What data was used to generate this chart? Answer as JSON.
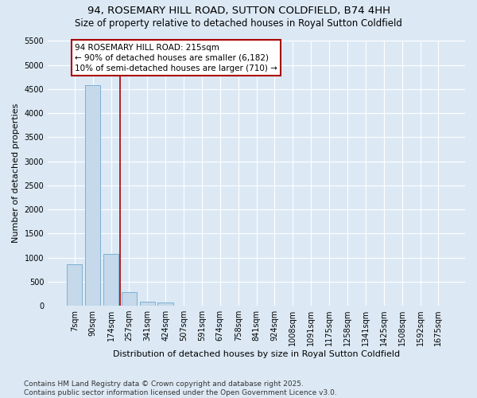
{
  "title": "94, ROSEMARY HILL ROAD, SUTTON COLDFIELD, B74 4HH",
  "subtitle": "Size of property relative to detached houses in Royal Sutton Coldfield",
  "xlabel": "Distribution of detached houses by size in Royal Sutton Coldfield",
  "ylabel": "Number of detached properties",
  "categories": [
    "7sqm",
    "90sqm",
    "174sqm",
    "257sqm",
    "341sqm",
    "424sqm",
    "507sqm",
    "591sqm",
    "674sqm",
    "758sqm",
    "841sqm",
    "924sqm",
    "1008sqm",
    "1091sqm",
    "1175sqm",
    "1258sqm",
    "1341sqm",
    "1425sqm",
    "1508sqm",
    "1592sqm",
    "1675sqm"
  ],
  "values": [
    860,
    4580,
    1080,
    290,
    90,
    60,
    0,
    0,
    0,
    0,
    0,
    0,
    0,
    0,
    0,
    0,
    0,
    0,
    0,
    0,
    0
  ],
  "bar_color": "#c5d9ea",
  "bar_edgecolor": "#6fa8d0",
  "vline_color": "#aa0000",
  "background_color": "#dce9f5",
  "grid_color": "#ffffff",
  "ylim": [
    0,
    5500
  ],
  "yticks": [
    0,
    500,
    1000,
    1500,
    2000,
    2500,
    3000,
    3500,
    4000,
    4500,
    5000,
    5500
  ],
  "annotation_text": "94 ROSEMARY HILL ROAD: 215sqm\n← 90% of detached houses are smaller (6,182)\n10% of semi-detached houses are larger (710) →",
  "footer_line1": "Contains HM Land Registry data © Crown copyright and database right 2025.",
  "footer_line2": "Contains public sector information licensed under the Open Government Licence v3.0.",
  "title_fontsize": 9.5,
  "subtitle_fontsize": 8.5,
  "axis_label_fontsize": 8,
  "tick_fontsize": 7,
  "annotation_fontsize": 7.5,
  "footer_fontsize": 6.5
}
